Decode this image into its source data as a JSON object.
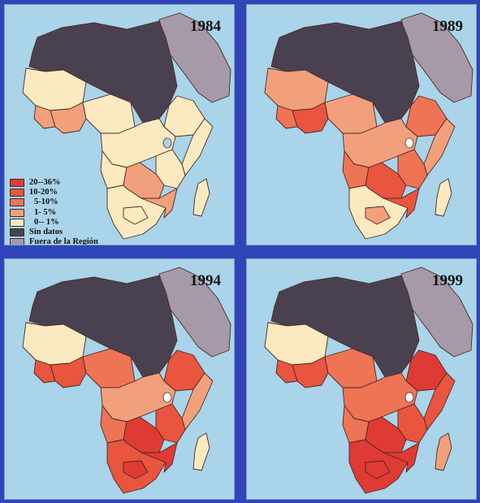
{
  "panels": [
    {
      "year": "1984",
      "fills": {
        "north": "dark",
        "horn_n": "pale",
        "horn_s": "pale",
        "west": "pale",
        "w1": "light",
        "w2": "light",
        "w3": "pale",
        "central": "pale",
        "c2": "pale",
        "east": "pale",
        "e2": "light",
        "south": "pale",
        "s2": "light",
        "s3": "pale",
        "madag": "pale"
      }
    },
    {
      "year": "1989",
      "fills": {
        "north": "dark",
        "horn_n": "mid",
        "horn_s": "light",
        "west": "light",
        "w1": "mid",
        "w2": "high",
        "w3": "light",
        "central": "light",
        "c2": "mid",
        "east": "mid",
        "e2": "high",
        "south": "pale",
        "s2": "high",
        "s3": "light",
        "madag": "pale"
      }
    },
    {
      "year": "1994",
      "fills": {
        "north": "dark",
        "horn_n": "high",
        "horn_s": "light",
        "west": "pale",
        "w1": "high",
        "w2": "high",
        "w3": "mid",
        "central": "light",
        "c2": "mid",
        "east": "high",
        "e2": "top",
        "south": "high",
        "s2": "top",
        "s3": "top",
        "madag": "pale"
      }
    },
    {
      "year": "1999",
      "fills": {
        "north": "dark",
        "horn_n": "top",
        "horn_s": "high",
        "west": "pale",
        "w1": "high",
        "w2": "high",
        "w3": "mid",
        "central": "mid",
        "c2": "mid",
        "east": "high",
        "e2": "top",
        "south": "top",
        "s2": "top",
        "s3": "top",
        "madag": "light"
      }
    }
  ],
  "legend": [
    {
      "key": "top",
      "label": "20--36%"
    },
    {
      "key": "high",
      "label": "10-20%"
    },
    {
      "key": "mid",
      "label": "5-10%"
    },
    {
      "key": "light",
      "label": "1- 5%"
    },
    {
      "key": "pale",
      "label": "0-- 1%"
    },
    {
      "key": "dark",
      "label": "Sin datos"
    },
    {
      "key": "outside",
      "label": "Fuera de la Región"
    }
  ],
  "colors": {
    "top": "#e03a35",
    "high": "#e9553f",
    "mid": "#ef7455",
    "light": "#f2a07c",
    "pale": "#fbe9c0",
    "dark": "#4a4150",
    "outside": "#a69aa8",
    "ocean": "#a9d4ea",
    "border": "#4a2a24"
  }
}
